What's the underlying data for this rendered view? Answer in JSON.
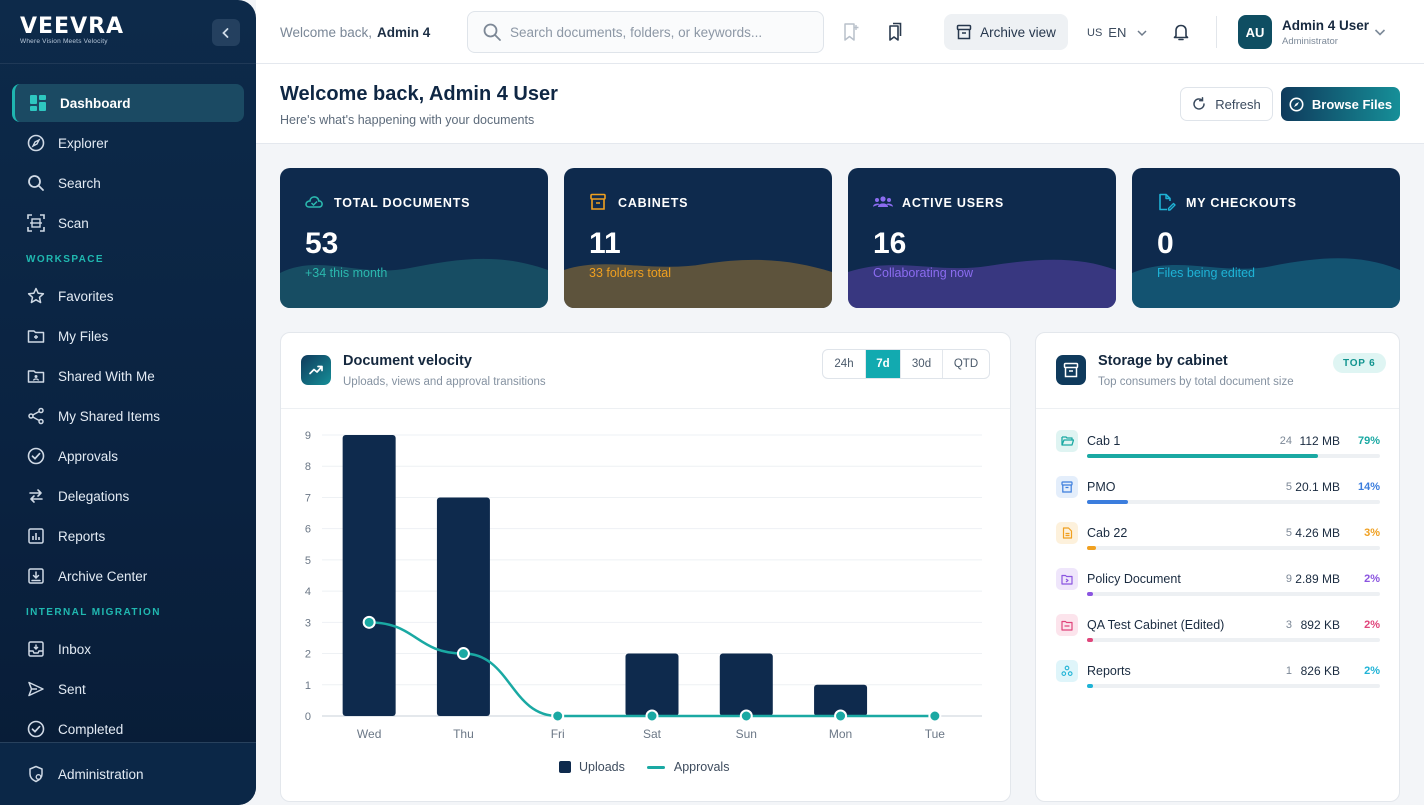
{
  "brand": {
    "name": "VEEVRA",
    "tagline": "Where Vision Meets Velocity"
  },
  "sidebar": {
    "items": [
      {
        "label": "Dashboard",
        "icon": "dashboard-icon",
        "active": true
      },
      {
        "label": "Explorer",
        "icon": "compass-icon"
      },
      {
        "label": "Search",
        "icon": "search-icon"
      },
      {
        "label": "Scan",
        "icon": "scan-icon"
      }
    ],
    "workspace_title": "WORKSPACE",
    "workspace_items": [
      {
        "label": "Favorites",
        "icon": "star-icon"
      },
      {
        "label": "My Files",
        "icon": "folder-icon"
      },
      {
        "label": "Shared With Me",
        "icon": "shared-folder-icon"
      },
      {
        "label": "My Shared Items",
        "icon": "share-icon"
      },
      {
        "label": "Approvals",
        "icon": "check-circle-icon"
      },
      {
        "label": "Delegations",
        "icon": "swap-icon"
      },
      {
        "label": "Reports",
        "icon": "report-icon"
      },
      {
        "label": "Archive Center",
        "icon": "archive-icon"
      }
    ],
    "migration_title": "INTERNAL MIGRATION",
    "migration_items": [
      {
        "label": "Inbox",
        "icon": "inbox-icon"
      },
      {
        "label": "Sent",
        "icon": "send-icon"
      },
      {
        "label": "Completed",
        "icon": "check-circle-icon"
      }
    ],
    "bottom_item": {
      "label": "Administration",
      "icon": "admin-shield-icon"
    }
  },
  "header": {
    "welcome_prefix": "Welcome back,",
    "welcome_name": "Admin 4",
    "search_placeholder": "Search documents, folders, or keywords...",
    "archive_label": "Archive view",
    "lang_flag": "US",
    "lang_code": "EN",
    "user_initials": "AU",
    "user_name": "Admin 4 User",
    "user_role": "Administrator"
  },
  "page": {
    "title": "Welcome back, Admin 4 User",
    "subtitle": "Here's what's happening with your documents",
    "refresh_label": "Refresh",
    "browse_label": "Browse Files"
  },
  "kpis": [
    {
      "label": "TOTAL DOCUMENTS",
      "value": "53",
      "sub": "+34 this month",
      "accent": "#2bb8ae"
    },
    {
      "label": "CABINETS",
      "value": "11",
      "sub": "33 folders total",
      "accent": "#f0a020"
    },
    {
      "label": "ACTIVE USERS",
      "value": "16",
      "sub": "Collaborating now",
      "accent": "#8b6cf0"
    },
    {
      "label": "MY CHECKOUTS",
      "value": "0",
      "sub": "Files being edited",
      "accent": "#1fb3d6"
    }
  ],
  "velocity": {
    "title": "Document velocity",
    "subtitle": "Uploads, views and approval transitions",
    "ranges": [
      "24h",
      "7d",
      "30d",
      "QTD"
    ],
    "selected_range": "7d",
    "legend_uploads": "Uploads",
    "legend_approvals": "Approvals"
  },
  "chart_data": {
    "type": "bar",
    "categories": [
      "Wed",
      "Thu",
      "Fri",
      "Sat",
      "Sun",
      "Mon",
      "Tue"
    ],
    "series": [
      {
        "name": "Uploads",
        "type": "bar",
        "values": [
          9,
          7,
          0,
          2,
          2,
          1,
          0
        ],
        "color": "#0e2a4d"
      },
      {
        "name": "Approvals",
        "type": "line",
        "values": [
          3,
          2,
          0,
          0,
          0,
          0,
          0
        ],
        "color": "#1aa9a3"
      }
    ],
    "ylim": [
      0,
      9
    ],
    "yticks": [
      0,
      1,
      2,
      3,
      4,
      5,
      6,
      7,
      8,
      9
    ],
    "grid": true,
    "legend": "bottom"
  },
  "storage": {
    "title": "Storage by cabinet",
    "subtitle": "Top consumers by total document size",
    "badge": "TOP 6",
    "rows": [
      {
        "name": "Cab 1",
        "count": "24",
        "size": "112 MB",
        "pct": "79%",
        "fraction": 0.79,
        "color": "#1aa9a3",
        "icon": "open-folder-icon"
      },
      {
        "name": "PMO",
        "count": "5",
        "size": "20.1 MB",
        "pct": "14%",
        "fraction": 0.14,
        "color": "#3b7ddd",
        "icon": "archive-box-icon"
      },
      {
        "name": "Cab 22",
        "count": "5",
        "size": "4.26 MB",
        "pct": "3%",
        "fraction": 0.03,
        "color": "#f0a020",
        "icon": "document-icon"
      },
      {
        "name": "Policy Document",
        "count": "9",
        "size": "2.89 MB",
        "pct": "2%",
        "fraction": 0.02,
        "color": "#8b55e0",
        "icon": "folder-icon"
      },
      {
        "name": "QA Test Cabinet (Edited)",
        "count": "3",
        "size": "892 KB",
        "pct": "2%",
        "fraction": 0.02,
        "color": "#e0457b",
        "icon": "folder-icon"
      },
      {
        "name": "Reports",
        "count": "1",
        "size": "826 KB",
        "pct": "2%",
        "fraction": 0.02,
        "color": "#1fb3d6",
        "icon": "nodes-icon"
      }
    ]
  }
}
